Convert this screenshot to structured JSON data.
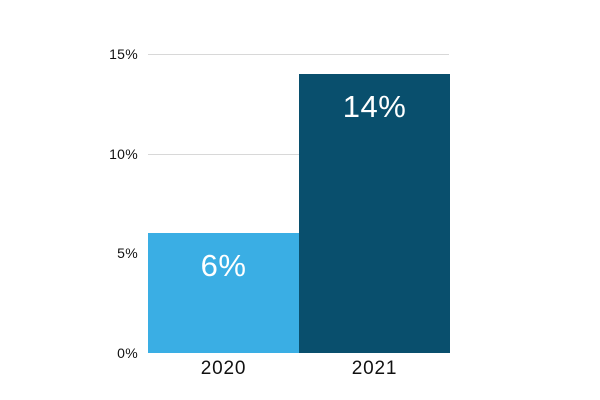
{
  "chart": {
    "background_color": "#FFFFFF",
    "grid_color": "#D8D8D8",
    "axis_text_color": "#111111",
    "value_label_color": "#FFFFFF"
  },
  "chart_data": {
    "type": "bar",
    "title": "",
    "xlabel": "",
    "ylabel": "",
    "categories": [
      "2020",
      "2021"
    ],
    "values": [
      6,
      14
    ],
    "bar_labels": [
      "6%",
      "14%"
    ],
    "bar_colors": [
      "#3AAEE4",
      "#094F6D"
    ],
    "y_ticks": [
      {
        "value": 0,
        "label": "0%"
      },
      {
        "value": 5,
        "label": "5%"
      },
      {
        "value": 10,
        "label": "10%"
      },
      {
        "value": 15,
        "label": "15%"
      }
    ],
    "ylim": [
      0,
      15
    ],
    "grid": "horizontal",
    "gridlines_at": [
      5,
      10,
      15
    ],
    "legend": "none"
  }
}
